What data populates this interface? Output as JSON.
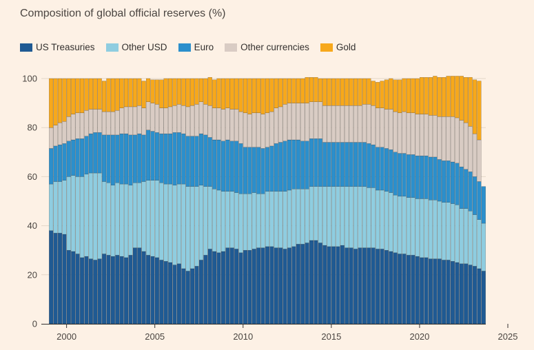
{
  "chart_data": {
    "type": "bar",
    "stacked": true,
    "title": "Composition of global official reserves (%)",
    "ylim": [
      0,
      100
    ],
    "yticks": [
      0,
      20,
      40,
      60,
      80,
      100
    ],
    "xticks": [
      "2000",
      "2005",
      "2010",
      "2015",
      "2020",
      "2025"
    ],
    "x_start": 1999.0,
    "x_step": 0.25,
    "legend_position": "top",
    "grid": "horizontal",
    "series": [
      {
        "name": "US Treasuries",
        "color": "#1f5a93",
        "values": [
          38,
          37,
          37,
          36.5,
          30,
          29.5,
          28.5,
          27,
          27.5,
          26.5,
          26,
          26.5,
          28.5,
          28,
          27.5,
          28,
          27.5,
          27,
          28,
          31,
          31,
          29.5,
          28,
          27.5,
          27,
          26,
          25.5,
          25,
          24,
          24.5,
          22.5,
          21.5,
          22.5,
          23.5,
          26,
          28,
          30.5,
          29.5,
          29,
          29.5,
          31,
          31,
          30.5,
          29,
          30,
          30,
          30.5,
          31,
          31,
          31.5,
          31.5,
          31,
          31,
          30.5,
          31,
          31.5,
          32.5,
          32.5,
          33,
          34,
          34,
          33,
          32,
          31.5,
          31.5,
          31.5,
          32,
          31,
          31,
          30.5,
          31,
          31,
          31,
          31,
          30.5,
          30.5,
          30,
          29.5,
          29,
          28.5,
          28.5,
          28,
          28,
          27.5,
          27,
          27,
          26.5,
          26.5,
          26.5,
          26,
          26,
          25.5,
          25,
          24.5,
          24.5,
          24,
          23.5,
          22.5,
          21.5
        ]
      },
      {
        "name": "Other USD",
        "color": "#8fcde0",
        "values": [
          19,
          21,
          21,
          22,
          30,
          31,
          31.5,
          33,
          33.5,
          35,
          35.5,
          35,
          29.5,
          29.5,
          29,
          29.5,
          29.5,
          30,
          28.5,
          26.5,
          26.5,
          28.5,
          30.5,
          31,
          31.5,
          31.5,
          31.5,
          32,
          32.5,
          32.5,
          34.5,
          34.5,
          33.5,
          32.5,
          30.5,
          28,
          25.5,
          25.5,
          25.5,
          24.5,
          23,
          23,
          23,
          24,
          23,
          23,
          23,
          22,
          22,
          22.5,
          22.5,
          23,
          23,
          23.5,
          23.5,
          23.5,
          22.5,
          22.5,
          22,
          22,
          22,
          23,
          24,
          24.5,
          24.5,
          24.5,
          24,
          25,
          25,
          25.5,
          25,
          25,
          24.5,
          24.5,
          24,
          24,
          24,
          24,
          23.5,
          23.5,
          23.5,
          23.5,
          23.5,
          23.5,
          24,
          24,
          24,
          24,
          23.5,
          23.5,
          23.5,
          23.5,
          23.5,
          22.5,
          22.5,
          22,
          21,
          20,
          19.5
        ]
      },
      {
        "name": "Euro",
        "color": "#2b8fcc",
        "values": [
          14.5,
          14.5,
          15,
          15,
          14.5,
          14.5,
          15.5,
          15.5,
          15.5,
          16,
          16.5,
          16.5,
          19,
          19.5,
          20.5,
          19.5,
          20.5,
          20.5,
          20.5,
          19.5,
          20,
          19,
          20.5,
          20,
          19.5,
          20,
          20.5,
          20.5,
          21.5,
          21,
          20.5,
          20.5,
          20.5,
          20.5,
          21,
          21,
          20,
          20,
          20.5,
          20.5,
          21,
          20.5,
          21,
          20.5,
          19,
          19,
          18.5,
          19,
          18.5,
          18,
          18.5,
          19.5,
          20,
          20.5,
          20.5,
          20,
          20,
          19.5,
          19.5,
          19.5,
          19.5,
          19.5,
          18,
          18,
          18,
          18,
          18,
          18,
          18,
          18,
          18,
          18,
          18,
          17.5,
          17.5,
          17.5,
          17.5,
          17.5,
          17.5,
          17.5,
          17.5,
          17.5,
          17.5,
          17.5,
          17.5,
          17.5,
          17.5,
          17.5,
          17,
          17,
          17,
          17,
          17,
          17,
          16,
          16,
          15.5,
          15.5,
          15
        ]
      },
      {
        "name": "Other currencies",
        "color": "#d9ccc4",
        "values": [
          8.5,
          8.5,
          9,
          9,
          10,
          10.5,
          10.5,
          10.5,
          10.5,
          10,
          9.5,
          9.5,
          9.5,
          9.5,
          9.5,
          10,
          10.5,
          11,
          11.5,
          11.5,
          11.5,
          11,
          11.5,
          11.5,
          11.5,
          10.5,
          10.5,
          11,
          11,
          11.5,
          11.5,
          12,
          12.5,
          13,
          13,
          12.5,
          13,
          13,
          13,
          13,
          13,
          13,
          13,
          13,
          14,
          13.5,
          14,
          14,
          14,
          14,
          14,
          14.5,
          14.5,
          15,
          15,
          15,
          15,
          15.5,
          15.5,
          15,
          15,
          15,
          15,
          15,
          15,
          15,
          15,
          15,
          15,
          15,
          15,
          15.5,
          16,
          16,
          16,
          16,
          16,
          16.5,
          16.5,
          16.5,
          17,
          17,
          17,
          17,
          17,
          17,
          17,
          17,
          17.5,
          18,
          18,
          18.5,
          18.5,
          19,
          19,
          18.5,
          17.5,
          17
        ]
      },
      {
        "name": "Gold",
        "color": "#f7a81b",
        "values": [
          20,
          19,
          18,
          17.5,
          15.5,
          14.5,
          14,
          14,
          13,
          12.5,
          12.5,
          12.5,
          12.5,
          13.5,
          13.5,
          13,
          12,
          11.5,
          11.5,
          11.5,
          11,
          11,
          9.5,
          9.5,
          10,
          11.5,
          12,
          11.5,
          11,
          10.5,
          11,
          11.5,
          11,
          10.5,
          9.5,
          10.5,
          11.5,
          11.5,
          12,
          12.5,
          12,
          12.5,
          12.5,
          13.5,
          14,
          14.5,
          14,
          14,
          14.5,
          14,
          13.5,
          12,
          11.5,
          10.5,
          10,
          10,
          10,
          10,
          10.5,
          10,
          10,
          9.5,
          11,
          11,
          11,
          11,
          11,
          11,
          11,
          11,
          11,
          10.5,
          10.5,
          10,
          10.5,
          11,
          12,
          12.5,
          13,
          13.5,
          13.5,
          14,
          14,
          14.5,
          15,
          15,
          15.5,
          16,
          16,
          16,
          16.5,
          16.5,
          17,
          18,
          18.5,
          20,
          22,
          24,
          27
        ]
      }
    ]
  }
}
